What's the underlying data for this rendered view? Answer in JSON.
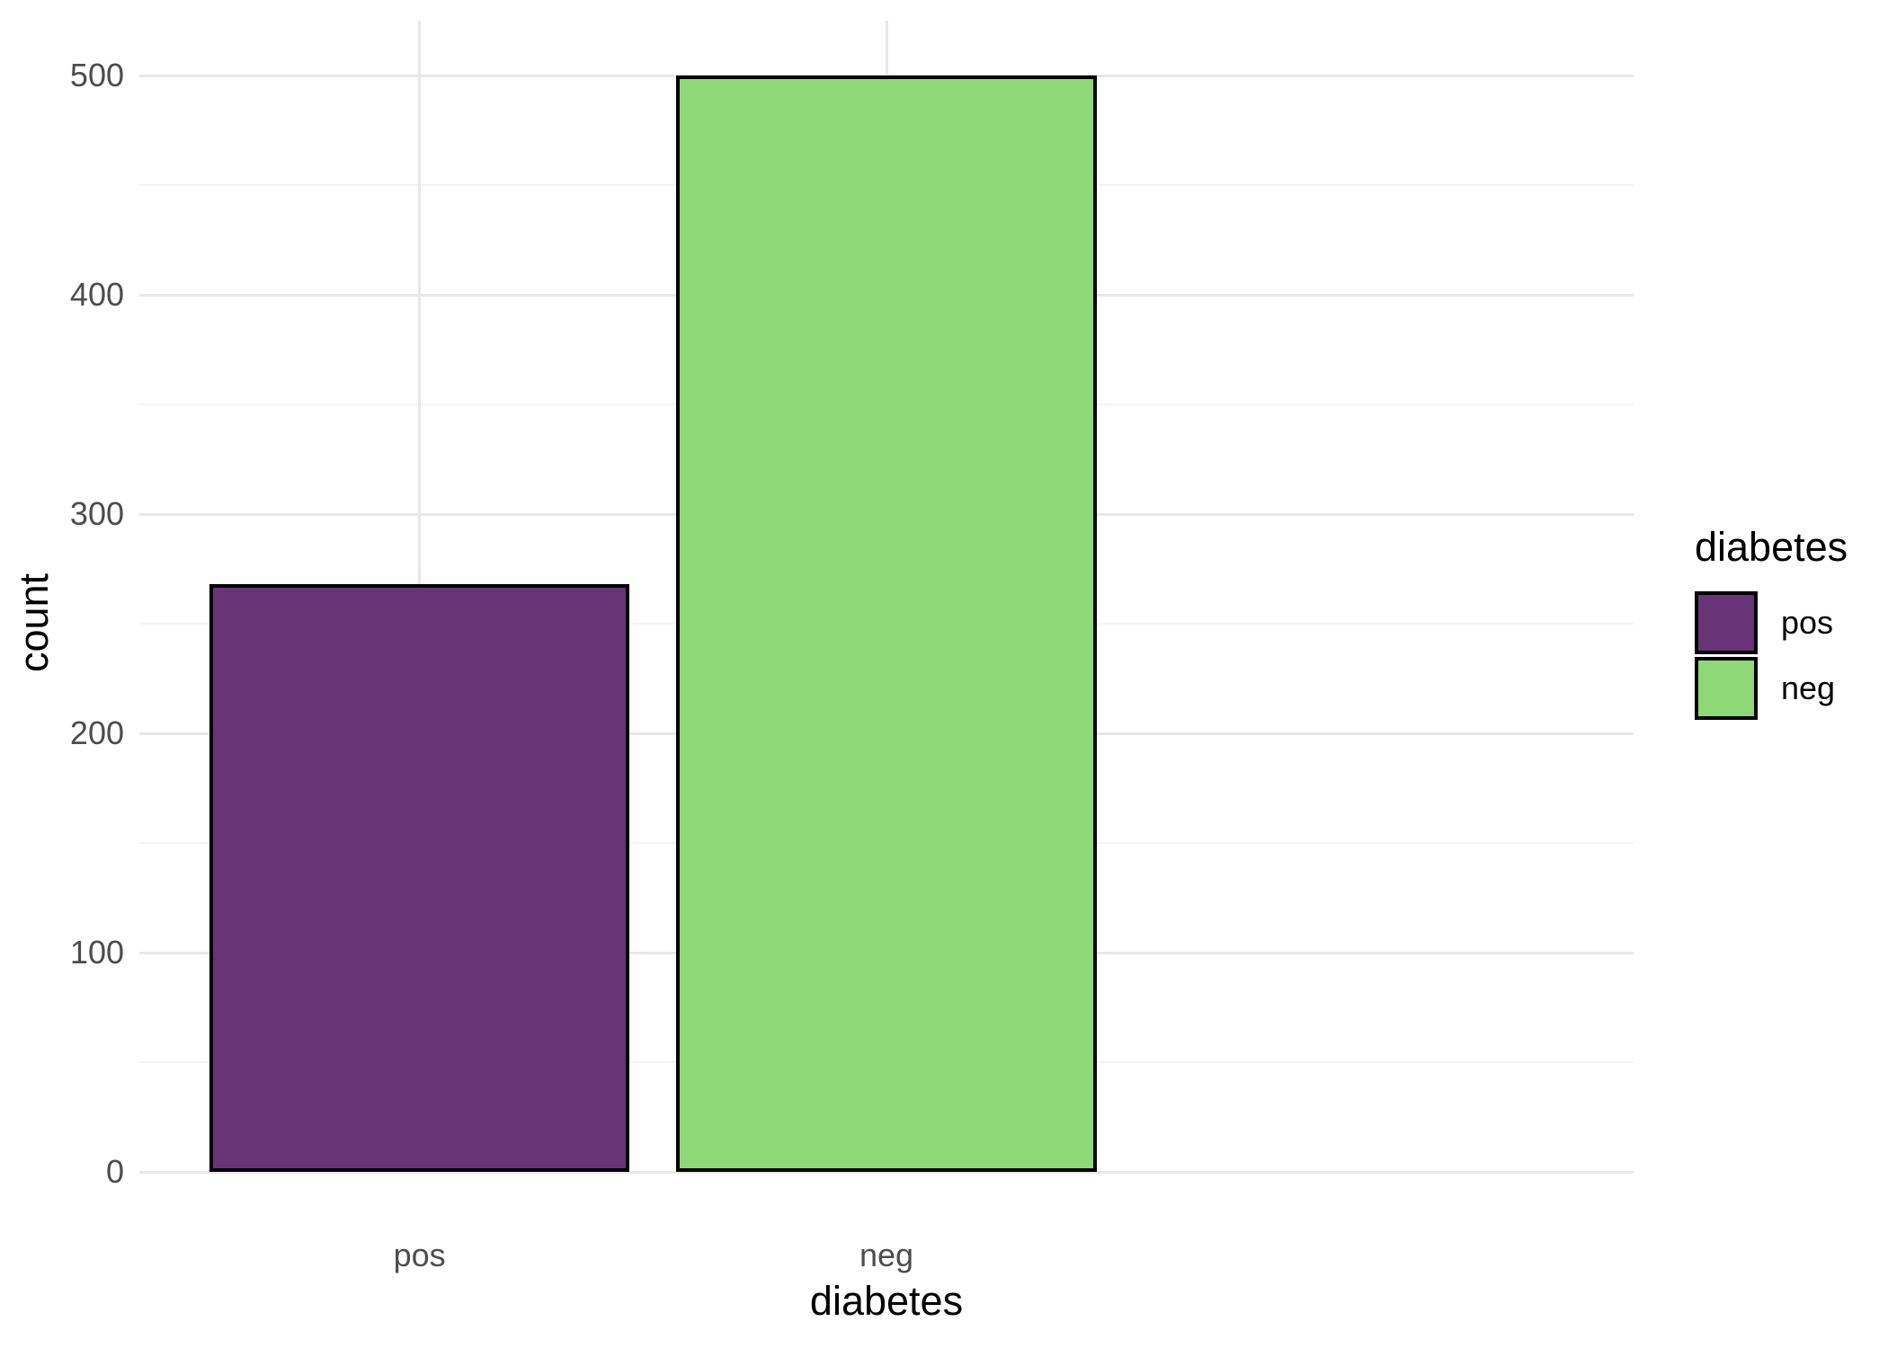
{
  "chart_data": {
    "type": "bar",
    "title": "",
    "xlabel": "diabetes",
    "ylabel": "count",
    "categories": [
      "pos",
      "neg"
    ],
    "values": [
      268,
      500
    ],
    "ylim": [
      0,
      500
    ],
    "y_major_ticks": [
      0,
      100,
      200,
      300,
      400,
      500
    ],
    "y_tick_labels": [
      "0",
      "100",
      "200",
      "300",
      "400",
      "500"
    ],
    "y_minor_ticks": [
      50,
      150,
      250,
      350,
      450
    ],
    "bar_fill_colors": [
      "#693377",
      "#8ed877"
    ],
    "bar_border_color": "#000000",
    "grid": "major+minor horizontal, major vertical at category centers",
    "legend": {
      "title": "diabetes",
      "position": "right",
      "entries": [
        {
          "label": "pos",
          "color": "#693377"
        },
        {
          "label": "neg",
          "color": "#8ed877"
        }
      ]
    },
    "colors": {
      "background": "#ffffff",
      "grid_major": "#e8e8e8",
      "grid_minor": "#f3f3f3",
      "axis_text": "#4d4d4d",
      "axis_title": "#000000"
    }
  }
}
